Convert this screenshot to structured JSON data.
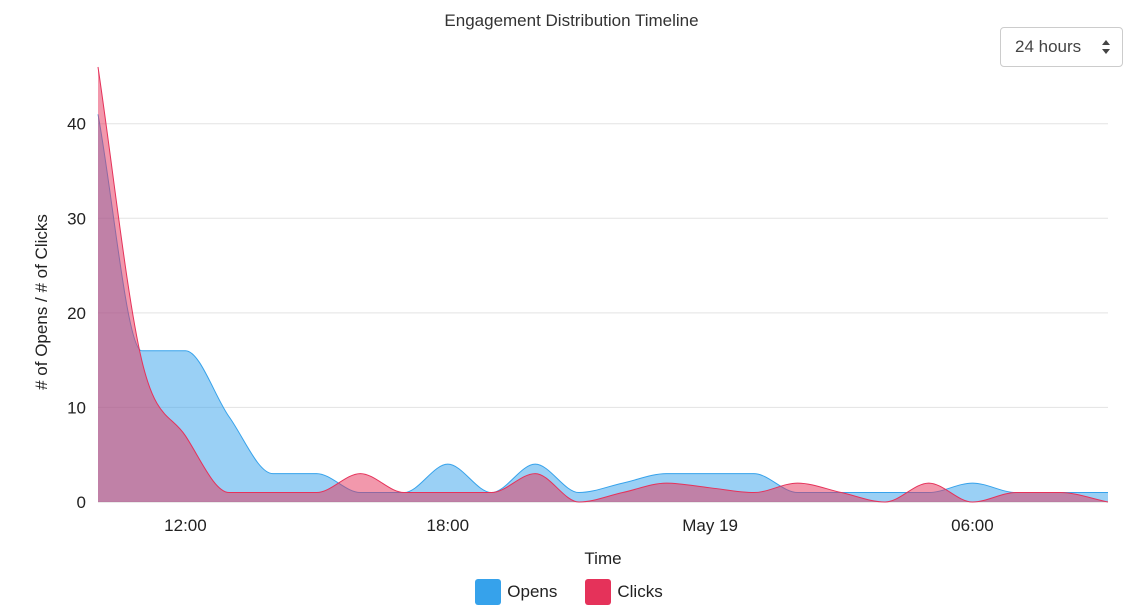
{
  "header": {
    "title": "Engagement Distribution Timeline"
  },
  "range_select": {
    "value": "24 hours"
  },
  "legend": {
    "items": [
      {
        "label": "Opens",
        "color": "#36a2eb"
      },
      {
        "label": "Clicks",
        "color": "#e5325a"
      }
    ]
  },
  "chart_data": {
    "type": "area",
    "title": "Engagement Distribution Timeline",
    "xlabel": "Time",
    "ylabel": "# of Opens / # of Clicks",
    "ylim": [
      0,
      46
    ],
    "yticks": [
      0,
      10,
      20,
      30,
      40
    ],
    "grid": true,
    "legend_position": "bottom",
    "x_unit": "hours",
    "xlim": [
      10,
      33.1
    ],
    "xticks": [
      {
        "value": 12,
        "label": "12:00"
      },
      {
        "value": 18,
        "label": "18:00"
      },
      {
        "value": 24,
        "label": "May 19"
      },
      {
        "value": 30,
        "label": "06:00"
      }
    ],
    "series": [
      {
        "name": "Opens",
        "color": "#36a2eb",
        "x": [
          10,
          11,
          12,
          13,
          14,
          15,
          16,
          17,
          18,
          19,
          20,
          21,
          22,
          23,
          24,
          25,
          26,
          27,
          28,
          29,
          30,
          31,
          32,
          33.1
        ],
        "values": [
          41,
          16,
          16,
          9,
          3,
          3,
          1,
          1,
          4,
          1,
          4,
          1,
          2,
          3,
          3,
          3,
          1,
          1,
          1,
          1,
          2,
          1,
          1,
          1
        ]
      },
      {
        "name": "Clicks",
        "color": "#e5325a",
        "x": [
          10,
          11,
          12,
          13,
          14,
          15,
          16,
          17,
          18,
          19,
          20,
          21,
          22,
          23,
          24,
          25,
          26,
          27,
          28,
          29,
          30,
          31,
          32,
          33.1
        ],
        "values": [
          46,
          15,
          7,
          1,
          1,
          1,
          3,
          1,
          1,
          1,
          3,
          0,
          1,
          2,
          1.5,
          1,
          2,
          1,
          0,
          2,
          0,
          1,
          1,
          0
        ]
      }
    ]
  }
}
